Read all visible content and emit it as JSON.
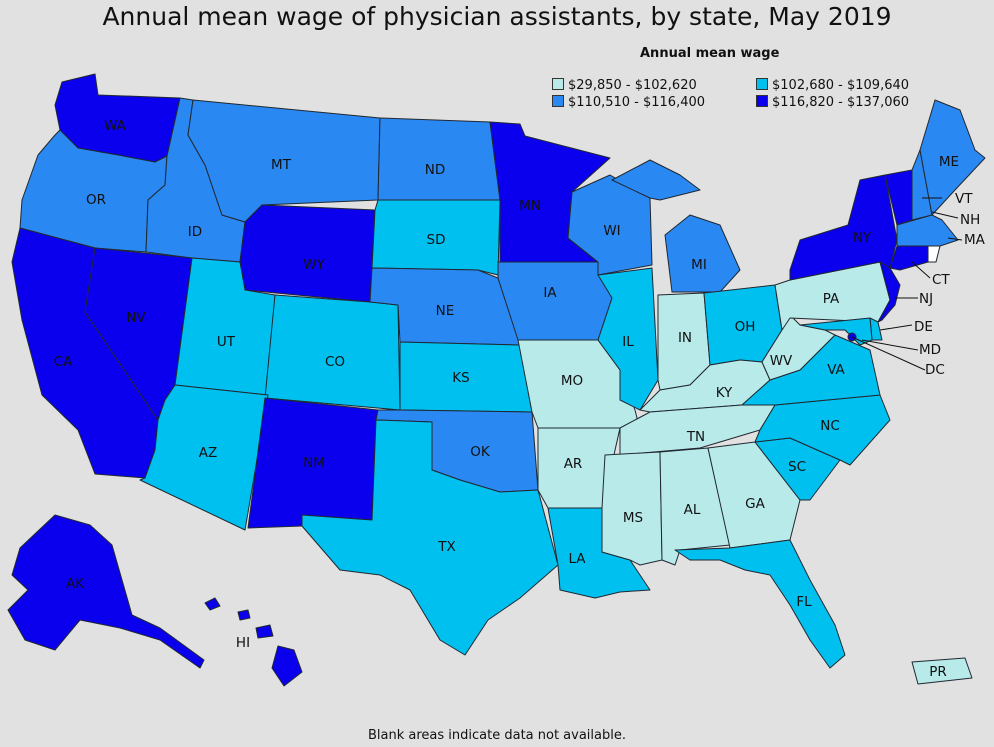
{
  "title": "Annual mean wage of physician assistants, by state, May 2019",
  "legend": {
    "title": "Annual mean wage",
    "classes": [
      {
        "label": "$29,850 - $102,620",
        "color": "#b8eaea"
      },
      {
        "label": "$102,680 - $109,640",
        "color": "#00c0f0"
      },
      {
        "label": "$110,510 - $116,400",
        "color": "#2a88f2"
      },
      {
        "label": "$116,820 - $137,060",
        "color": "#0a00ee"
      }
    ]
  },
  "footnote": "Blank areas indicate data not available.",
  "states": {
    "WA": 3,
    "OR": 2,
    "CA": 3,
    "NV": 3,
    "ID": 2,
    "MT": 2,
    "WY": 3,
    "UT": 1,
    "CO": 1,
    "AZ": 1,
    "NM": 3,
    "ND": 2,
    "SD": 1,
    "NE": 2,
    "KS": 1,
    "OK": 2,
    "TX": 1,
    "MN": 3,
    "IA": 2,
    "MO": 0,
    "AR": 0,
    "LA": 1,
    "WI": 2,
    "IL": 1,
    "MI": 2,
    "IN": 0,
    "OH": 1,
    "KY": 0,
    "TN": 0,
    "MS": 0,
    "AL": 0,
    "GA": 0,
    "FL": 1,
    "SC": 1,
    "NC": 1,
    "VA": 1,
    "WV": 0,
    "PA": 0,
    "NY": 3,
    "VT": 3,
    "NH": 2,
    "ME": 2,
    "MA": 2,
    "RI": -1,
    "CT": 3,
    "NJ": 3,
    "DE": 1,
    "MD": 1,
    "DC": 3,
    "AK": 3,
    "HI": 3,
    "PR": 0
  },
  "labels": {
    "WA": "WA",
    "OR": "OR",
    "CA": "CA",
    "NV": "NV",
    "ID": "ID",
    "MT": "MT",
    "WY": "WY",
    "UT": "UT",
    "CO": "CO",
    "AZ": "AZ",
    "NM": "NM",
    "ND": "ND",
    "SD": "SD",
    "NE": "NE",
    "KS": "KS",
    "OK": "OK",
    "TX": "TX",
    "MN": "MN",
    "IA": "IA",
    "MO": "MO",
    "AR": "AR",
    "LA": "LA",
    "WI": "WI",
    "IL": "IL",
    "MI": "MI",
    "IN": "IN",
    "OH": "OH",
    "KY": "KY",
    "TN": "TN",
    "MS": "MS",
    "AL": "AL",
    "GA": "GA",
    "FL": "FL",
    "SC": "SC",
    "NC": "NC",
    "VA": "VA",
    "WV": "WV",
    "PA": "PA",
    "NY": "NY",
    "VT": "VT",
    "NH": "NH",
    "ME": "ME",
    "MA": "MA",
    "CT": "CT",
    "NJ": "NJ",
    "DE": "DE",
    "MD": "MD",
    "DC": "DC",
    "AK": "AK",
    "HI": "HI",
    "PR": "PR"
  }
}
